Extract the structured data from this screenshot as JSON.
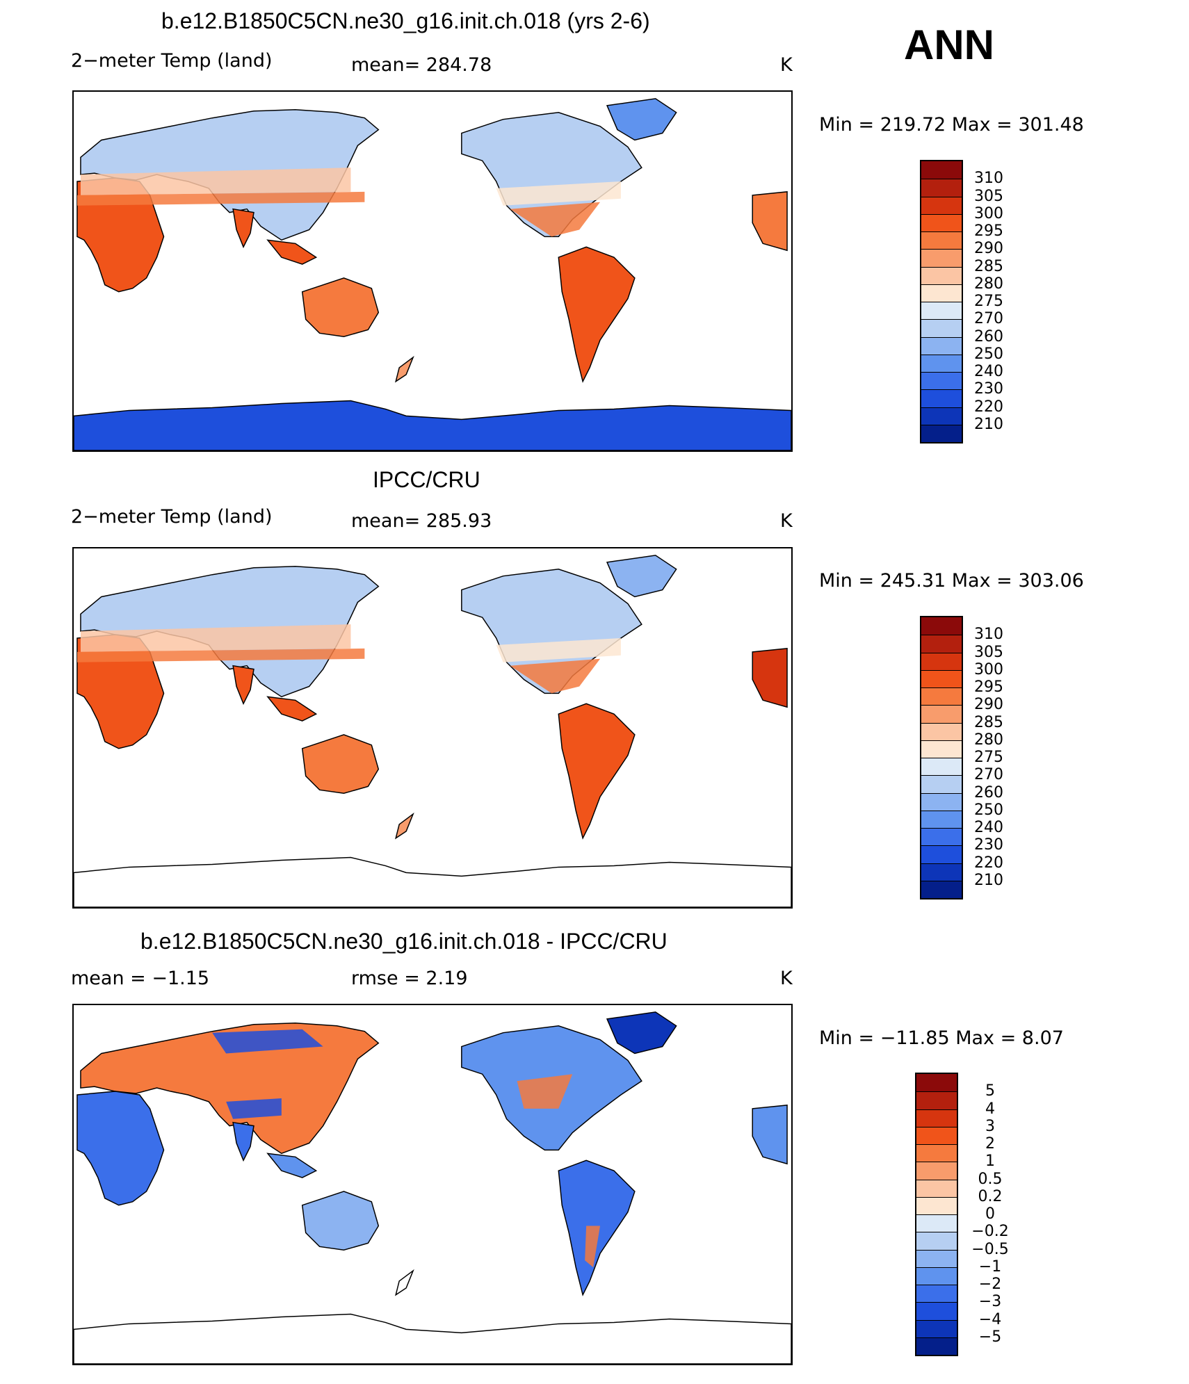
{
  "season": "ANN",
  "panels": [
    {
      "title": "b.e12.B1850C5CN.ne30_g16.init.ch.018 (yrs 2-6)",
      "left_label": "2−meter Temp (land)",
      "center_label": "mean=  284.78",
      "units": "K",
      "minmax": "Min  =  219.72  Max  =  301.48",
      "colorbar_labels": [
        "310",
        "305",
        "300",
        "295",
        "290",
        "285",
        "280",
        "275",
        "270",
        "260",
        "250",
        "240",
        "230",
        "220",
        "210"
      ],
      "colors": [
        "#8b0a0a",
        "#b3200e",
        "#d6350f",
        "#f0541a",
        "#f57a3e",
        "#f89c6c",
        "#fbc5a4",
        "#fde6d1",
        "#dce9f7",
        "#b6cff2",
        "#8cb3f1",
        "#5f93ee",
        "#3b6fea",
        "#1e4fdc",
        "#0d35b8",
        "#041f8a"
      ]
    },
    {
      "title": "IPCC/CRU",
      "left_label": "2−meter Temp (land)",
      "center_label": "mean=  285.93",
      "units": "K",
      "minmax": "Min  =  245.31  Max  =  303.06",
      "colorbar_labels": [
        "310",
        "305",
        "300",
        "295",
        "290",
        "285",
        "280",
        "275",
        "270",
        "260",
        "250",
        "240",
        "230",
        "220",
        "210"
      ],
      "colors": [
        "#8b0a0a",
        "#b3200e",
        "#d6350f",
        "#f0541a",
        "#f57a3e",
        "#f89c6c",
        "#fbc5a4",
        "#fde6d1",
        "#dce9f7",
        "#b6cff2",
        "#8cb3f1",
        "#5f93ee",
        "#3b6fea",
        "#1e4fdc",
        "#0d35b8",
        "#041f8a"
      ]
    },
    {
      "title": "b.e12.B1850C5CN.ne30_g16.init.ch.018 - IPCC/CRU",
      "left_label": "mean =    −1.15",
      "center_label": "rmse =     2.19",
      "units": "K",
      "minmax": "Min  =  −11.85  Max  =      8.07",
      "colorbar_labels": [
        "5",
        "4",
        "3",
        "2",
        "1",
        "0.5",
        "0.2",
        "0",
        "−0.2",
        "−0.5",
        "−1",
        "−2",
        "−3",
        "−4",
        "−5"
      ],
      "colors": [
        "#8b0a0a",
        "#b3200e",
        "#d6350f",
        "#f0541a",
        "#f57a3e",
        "#f89c6c",
        "#fbc5a4",
        "#fde6d1",
        "#dce9f7",
        "#b6cff2",
        "#8cb3f1",
        "#5f93ee",
        "#3b6fea",
        "#1e4fdc",
        "#0d35b8",
        "#041f8a"
      ]
    }
  ]
}
